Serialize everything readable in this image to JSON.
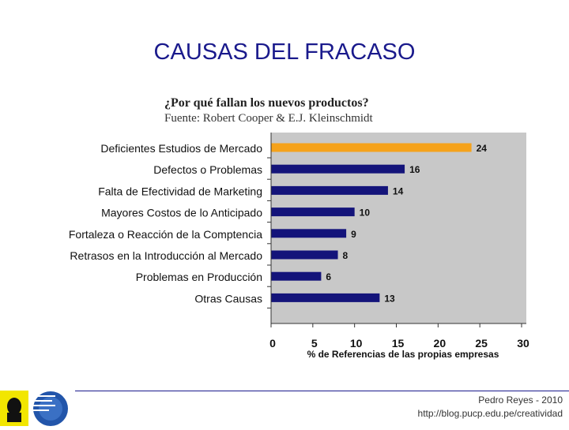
{
  "slide": {
    "title": "CAUSAS DEL FRACASO",
    "footer_author": "Pedro Reyes - 2010",
    "footer_url": "http://blog.pucp.edu.pe/creatividad"
  },
  "colors": {
    "highlight_bar": "#f5a21b",
    "bar": "#14147a",
    "plot_background": "#c8c8c8",
    "title": "#1a1a8c"
  },
  "chart_data": {
    "type": "bar",
    "orientation": "horizontal",
    "title": "¿Por qué fallan los nuevos productos?",
    "subtitle": "Fuente: Robert Cooper & E.J. Kleinschmidt",
    "xlabel": "% de Referencias de las propias empresas",
    "ylabel": "",
    "categories": [
      "Deficientes Estudios de Mercado",
      "Defectos o Problemas",
      "Falta de Efectividad de Marketing",
      "Mayores Costos de lo Anticipado",
      "Fortaleza o Reacción de la Comptencia",
      "Retrasos en la Introducción al Mercado",
      "Problemas en Producción",
      "Otras Causas"
    ],
    "values": [
      24,
      16,
      14,
      10,
      9,
      8,
      6,
      13
    ],
    "highlight_index": 0,
    "xlim": [
      0,
      30
    ],
    "xticks": [
      "0",
      "5",
      "10",
      "15",
      "20",
      "25",
      "30"
    ],
    "grid": false
  }
}
